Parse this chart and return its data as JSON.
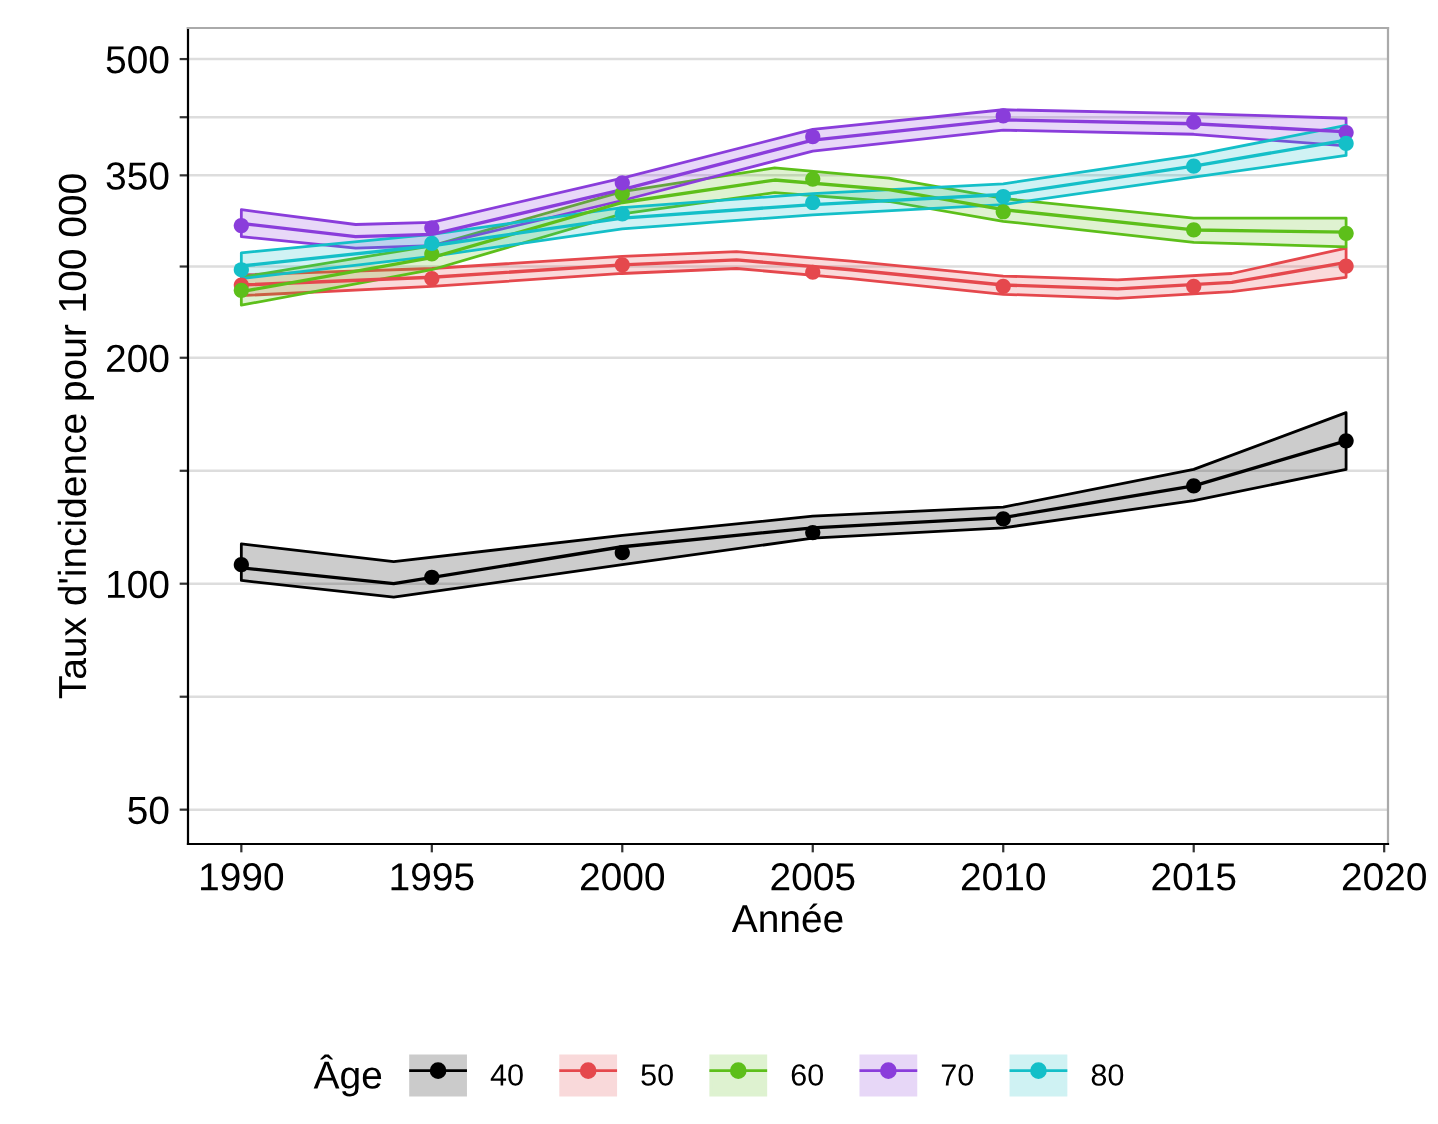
{
  "chart_data": {
    "type": "line",
    "xlabel": "Année",
    "ylabel": "Taux d'incidence pour 100 000",
    "legend_title": "Âge",
    "log": "y",
    "grid": "y",
    "legend": "bottom",
    "marker": "circle",
    "xlim": [
      1988.6,
      2020.1
    ],
    "xticks": [
      1990,
      1995,
      2000,
      2005,
      2010,
      2015,
      2020
    ],
    "ylim": [
      45,
      550
    ],
    "yticks": [
      50,
      {
        "value": 70.7,
        "label": null
      },
      100,
      {
        "value": 141.4,
        "label": null
      },
      200,
      {
        "value": 264.6,
        "label": null
      },
      350,
      {
        "value": 418.3,
        "label": null
      },
      500
    ],
    "series": [
      {
        "marker": "none",
        "name": "40",
        "color": "#000000",
        "x": [
          1990,
          1994,
          2000,
          2005,
          2010,
          2015,
          2019
        ],
        "values": [
          105,
          100,
          112,
          118.7,
          122.5,
          135,
          155
        ],
        "lower": [
          101,
          96,
          106,
          115,
          118.7,
          129,
          142
        ],
        "upper": [
          113,
          107,
          116,
          123,
          126.5,
          142,
          169
        ]
      },
      {
        "marker": "none",
        "name": "50",
        "color": "#e5484d",
        "x": [
          1990,
          1995,
          2000,
          2003,
          2006,
          2010,
          2013,
          2016,
          2019
        ],
        "values": [
          250,
          256,
          266,
          270,
          262,
          250,
          247,
          252,
          268
        ],
        "lower": [
          242,
          249,
          259,
          263,
          255,
          243,
          240,
          245,
          256
        ],
        "upper": [
          258,
          263,
          273,
          277,
          269,
          257,
          254,
          259,
          280
        ]
      },
      {
        "marker": "none",
        "name": "60",
        "color": "#5dbf1a",
        "x": [
          1990,
          1995,
          2000,
          2004,
          2007,
          2010,
          2015,
          2019
        ],
        "values": [
          245,
          272,
          322,
          345,
          335,
          315,
          296,
          294
        ],
        "lower": [
          235,
          262,
          311,
          332,
          323,
          304,
          285,
          281
        ],
        "upper": [
          256,
          282,
          333,
          358,
          347,
          326,
          307,
          307
        ]
      },
      {
        "marker": "none",
        "name": "70",
        "color": "#8a3ddb",
        "x": [
          1990,
          1993,
          1995,
          2000,
          2005,
          2010,
          2015,
          2019
        ],
        "values": [
          302,
          290,
          292,
          335,
          390,
          415,
          410,
          400
        ],
        "lower": [
          290,
          280,
          282,
          324,
          377,
          402,
          397,
          383
        ],
        "upper": [
          315,
          301,
          303,
          347,
          403,
          428,
          423,
          417
        ]
      },
      {
        "marker": "none",
        "name": "80",
        "color": "#14bfc8",
        "x": [
          1990,
          1995,
          2000,
          2005,
          2010,
          2015,
          2019
        ],
        "values": [
          265,
          282,
          307,
          320,
          330,
          360,
          390
        ],
        "lower": [
          255,
          273,
          297,
          310,
          320,
          348,
          372
        ],
        "upper": [
          276,
          292,
          317,
          331,
          341,
          372,
          408
        ]
      },
      {
        "type": "scatter",
        "color": "#000000",
        "x": [
          1990,
          1995,
          2000,
          2005,
          2010,
          2015,
          2019
        ],
        "values": [
          106,
          102,
          110,
          117,
          122,
          135,
          155
        ]
      },
      {
        "type": "scatter",
        "color": "#e5484d",
        "x": [
          1990,
          1995,
          2000,
          2005,
          2010,
          2015,
          2019
        ],
        "values": [
          250,
          255,
          266,
          260,
          249,
          249,
          265
        ]
      },
      {
        "type": "scatter",
        "color": "#5dbf1a",
        "x": [
          1990,
          1995,
          2000,
          2005,
          2010,
          2015,
          2019
        ],
        "values": [
          246,
          275,
          331,
          346,
          313,
          296,
          293
        ]
      },
      {
        "type": "scatter",
        "color": "#8a3ddb",
        "x": [
          1990,
          1995,
          2000,
          2005,
          2010,
          2015,
          2019
        ],
        "values": [
          300,
          298,
          342,
          394,
          420,
          412,
          399
        ]
      },
      {
        "type": "scatter",
        "color": "#14bfc8",
        "x": [
          1990,
          1995,
          2000,
          2005,
          2010,
          2015,
          2019
        ],
        "values": [
          262,
          284,
          311,
          322,
          328,
          360,
          386
        ]
      }
    ]
  }
}
